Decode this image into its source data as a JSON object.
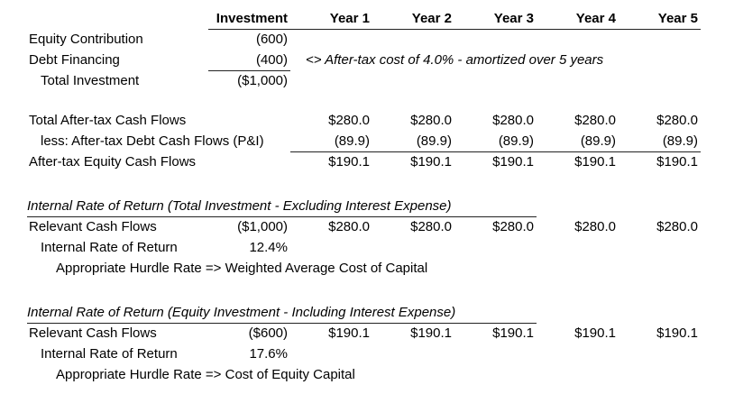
{
  "sheet": {
    "header": {
      "cols": [
        "Investment",
        "Year 1",
        "Year 2",
        "Year 3",
        "Year 4",
        "Year 5"
      ]
    },
    "investment_summary": {
      "equity": {
        "label": "Equity Contribution",
        "value": "(600)"
      },
      "debt": {
        "label": "Debt Financing",
        "value": "(400)"
      },
      "debt_note": "<> After-tax cost of 4.0% - amortized over 5 years",
      "total": {
        "label": "Total Investment",
        "value": "($1,000)"
      }
    },
    "cash_flows": {
      "total_after_tax": {
        "label": "Total After-tax Cash Flows",
        "years": [
          "$280.0",
          "$280.0",
          "$280.0",
          "$280.0",
          "$280.0"
        ]
      },
      "less_debt": {
        "label": "less: After-tax Debt Cash Flows (P&I)",
        "years": [
          "(89.9)",
          "(89.9)",
          "(89.9)",
          "(89.9)",
          "(89.9)"
        ]
      },
      "equity": {
        "label": "After-tax Equity Cash Flows",
        "years": [
          "$190.1",
          "$190.1",
          "$190.1",
          "$190.1",
          "$190.1"
        ]
      }
    },
    "irr_total_investment": {
      "title": "Internal Rate of Return (Total Investment - Excluding Interest Expense)",
      "relevant_cash_flows": {
        "label": "Relevant Cash Flows",
        "investment": "($1,000)",
        "years": [
          "$280.0",
          "$280.0",
          "$280.0",
          "$280.0",
          "$280.0"
        ]
      },
      "irr": {
        "label": "Internal Rate of Return",
        "value": "12.4%"
      },
      "hurdle_note": "Appropriate Hurdle Rate => Weighted Average Cost of Capital"
    },
    "irr_equity_investment": {
      "title": "Internal Rate of Return (Equity Investment - Including Interest Expense)",
      "relevant_cash_flows": {
        "label": "Relevant Cash Flows",
        "investment": "($600)",
        "years": [
          "$190.1",
          "$190.1",
          "$190.1",
          "$190.1",
          "$190.1"
        ]
      },
      "irr": {
        "label": "Internal Rate of Return",
        "value": "17.6%"
      },
      "hurdle_note": "Appropriate Hurdle Rate => Cost of Equity Capital"
    }
  }
}
